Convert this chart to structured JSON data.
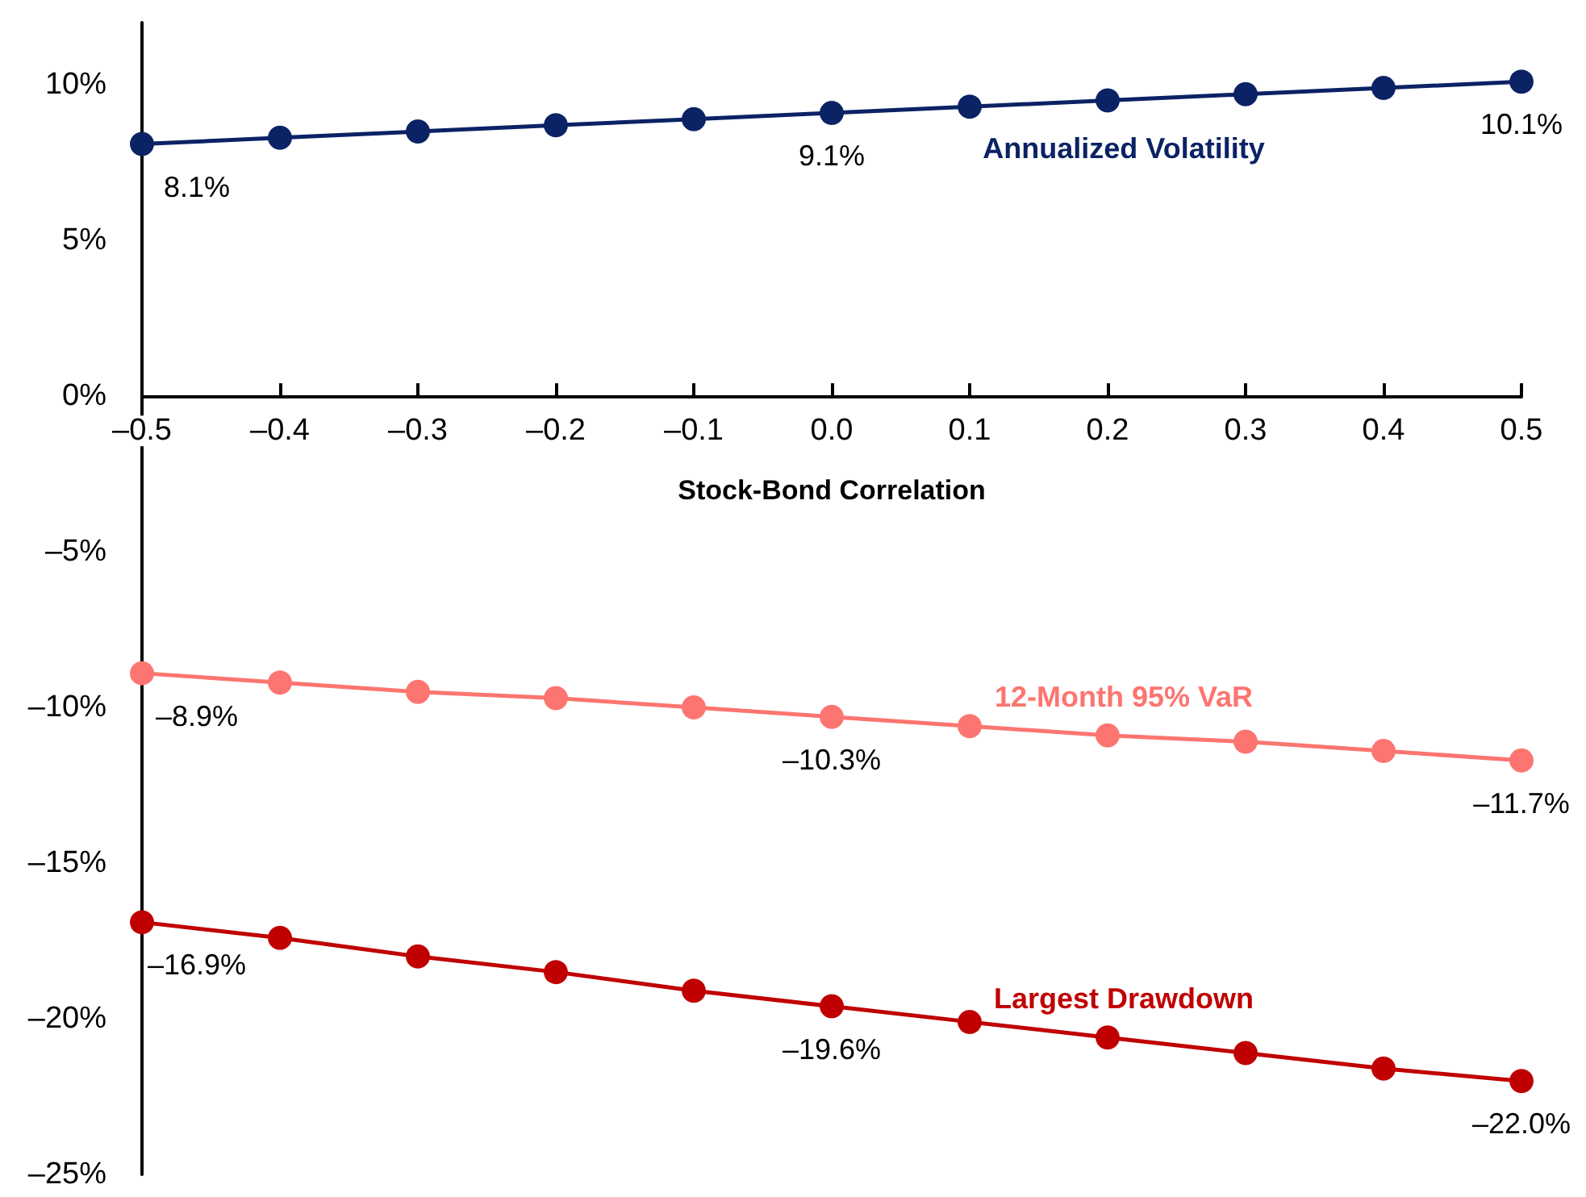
{
  "chart_data": {
    "type": "line",
    "xlabel": "Stock-Bond Correlation",
    "x": [
      -0.5,
      -0.4,
      -0.3,
      -0.2,
      -0.1,
      0.0,
      0.1,
      0.2,
      0.3,
      0.4,
      0.5
    ],
    "series": [
      {
        "name": "Annualized Volatility",
        "color": "#0b2265",
        "values": [
          8.1,
          8.3,
          8.5,
          8.7,
          8.9,
          9.1,
          9.3,
          9.5,
          9.7,
          9.9,
          10.1
        ],
        "value_labels": [
          "8.1%",
          null,
          null,
          null,
          null,
          "9.1%",
          null,
          null,
          null,
          null,
          "10.1%"
        ]
      },
      {
        "name": "12-Month 95% VaR",
        "color": "#fc7570",
        "values": [
          -8.9,
          -9.2,
          -9.5,
          -9.7,
          -10.0,
          -10.3,
          -10.6,
          -10.9,
          -11.1,
          -11.4,
          -11.7
        ],
        "value_labels": [
          "–8.9%",
          null,
          null,
          null,
          null,
          "–10.3%",
          null,
          null,
          null,
          null,
          "–11.7%"
        ]
      },
      {
        "name": "Largest Drawdown",
        "color": "#c00000",
        "values": [
          -16.9,
          -17.4,
          -18.0,
          -18.5,
          -19.1,
          -19.6,
          -20.1,
          -20.6,
          -21.1,
          -21.6,
          -22.0
        ],
        "value_labels": [
          "–16.9%",
          null,
          null,
          null,
          null,
          "–19.6%",
          null,
          null,
          null,
          null,
          "–22.0%"
        ]
      }
    ],
    "xlim": [
      -0.5,
      0.5
    ],
    "xticks": [
      {
        "value": -0.5,
        "label": "–0.5"
      },
      {
        "value": -0.4,
        "label": "–0.4"
      },
      {
        "value": -0.3,
        "label": "–0.3"
      },
      {
        "value": -0.2,
        "label": "–0.2"
      },
      {
        "value": -0.1,
        "label": "–0.1"
      },
      {
        "value": 0,
        "label": "0.0"
      },
      {
        "value": 0.1,
        "label": "0.1"
      },
      {
        "value": 0.2,
        "label": "0.2"
      },
      {
        "value": 0.3,
        "label": "0.3"
      },
      {
        "value": 0.4,
        "label": "0.4"
      },
      {
        "value": 0.5,
        "label": "0.5"
      }
    ],
    "ylim": [
      -25,
      12
    ],
    "yticks": [
      {
        "value": -25,
        "label": "–25%"
      },
      {
        "value": -20,
        "label": "–20%"
      },
      {
        "value": -15,
        "label": "–15%"
      },
      {
        "value": -10,
        "label": "–10%"
      },
      {
        "value": -5,
        "label": "–5%"
      },
      {
        "value": 0,
        "label": "0%"
      },
      {
        "value": 5,
        "label": "5%"
      },
      {
        "value": 10,
        "label": "10%"
      }
    ],
    "grid": false,
    "legend": false,
    "marker": "circle",
    "line_style": "solid"
  }
}
